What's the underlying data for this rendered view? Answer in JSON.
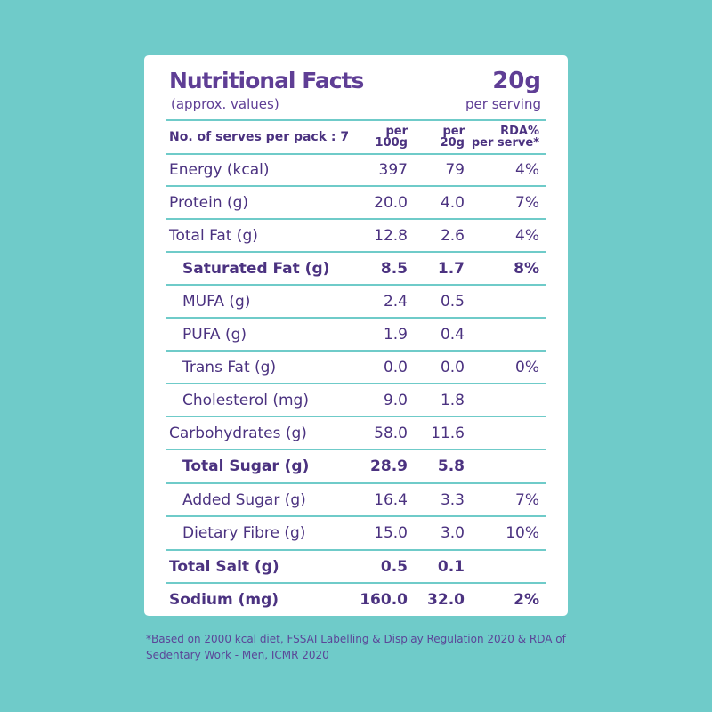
{
  "panel": {
    "title": "Nutritional Facts",
    "subtitle": "(approx. values)",
    "serving": "20g",
    "serving_label": "per serving"
  },
  "columns": {
    "label": "No. of serves per pack : 7",
    "per100_top": "per",
    "per100_bottom": "100g",
    "per20_top": "per",
    "per20_bottom": "20g",
    "rda_top": "RDA%",
    "rda_bottom": "per serve*"
  },
  "rows": [
    {
      "label": "Energy (kcal)",
      "per100": "397",
      "per20": "79",
      "rda": "4%"
    },
    {
      "label": "Protein (g)",
      "per100": "20.0",
      "per20": "4.0",
      "rda": "7%"
    },
    {
      "label": "Total Fat (g)",
      "per100": "12.8",
      "per20": "2.6",
      "rda": "4%"
    },
    {
      "label": "Saturated Fat (g)",
      "per100": "8.5",
      "per20": "1.7",
      "rda": "8%"
    },
    {
      "label": "MUFA (g)",
      "per100": "2.4",
      "per20": "0.5",
      "rda": ""
    },
    {
      "label": "PUFA (g)",
      "per100": "1.9",
      "per20": "0.4",
      "rda": ""
    },
    {
      "label": "Trans Fat (g)",
      "per100": "0.0",
      "per20": "0.0",
      "rda": "0%"
    },
    {
      "label": "Cholesterol (mg)",
      "per100": "9.0",
      "per20": "1.8",
      "rda": ""
    },
    {
      "label": "Carbohydrates (g)",
      "per100": "58.0",
      "per20": "11.6",
      "rda": ""
    },
    {
      "label": "Total Sugar (g)",
      "per100": "28.9",
      "per20": "5.8",
      "rda": ""
    },
    {
      "label": "Added Sugar (g)",
      "per100": "16.4",
      "per20": "3.3",
      "rda": "7%"
    },
    {
      "label": "Dietary Fibre (g)",
      "per100": "15.0",
      "per20": "3.0",
      "rda": "10%"
    },
    {
      "label": "Total Salt (g)",
      "per100": "0.5",
      "per20": "0.1",
      "rda": ""
    },
    {
      "label": "Sodium (mg)",
      "per100": "160.0",
      "per20": "32.0",
      "rda": "2%"
    }
  ],
  "footnote": "*Based on 2000 kcal diet, FSSAI Labelling & Display Regulation 2020 & RDA of Sedentary Work - Men, ICMR 2020",
  "colors": {
    "background": "#6fcbc9",
    "card": "#ffffff",
    "text": "#4b3280",
    "title": "#5f3e95",
    "divider": "#6fcbc9"
  }
}
